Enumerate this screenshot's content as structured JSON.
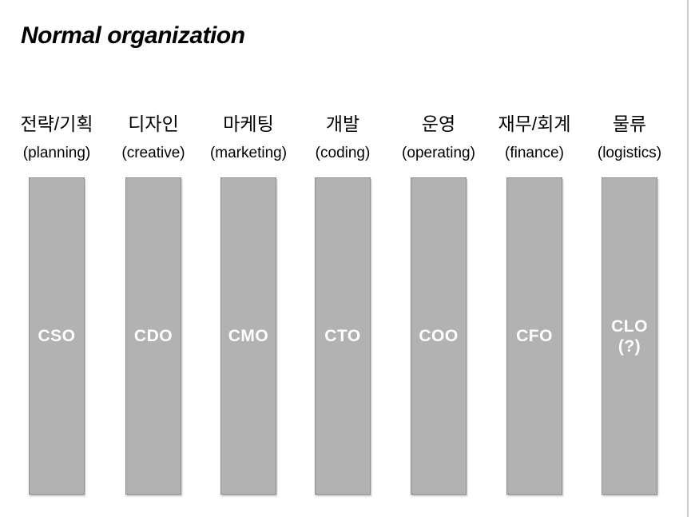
{
  "title": "Normal organization",
  "columns": [
    {
      "korean": "전략/기획",
      "english": "(planning)",
      "role": "CSO",
      "note": ""
    },
    {
      "korean": "디자인",
      "english": "(creative)",
      "role": "CDO",
      "note": ""
    },
    {
      "korean": "마케팅",
      "english": "(marketing)",
      "role": "CMO",
      "note": ""
    },
    {
      "korean": "개발",
      "english": "(coding)",
      "role": "CTO",
      "note": ""
    },
    {
      "korean": "운영",
      "english": "(operating)",
      "role": "COO",
      "note": ""
    },
    {
      "korean": "재무/회계",
      "english": "(finance)",
      "role": "CFO",
      "note": ""
    },
    {
      "korean": "물류",
      "english": "(logistics)",
      "role": "CLO",
      "note": "(?)"
    }
  ],
  "colors": {
    "bar-fill": "#b2b2b2",
    "bar-border": "#8f8f8f",
    "text-on-bar": "#ffffff",
    "title-text": "#000000",
    "edge-line": "#cacaca",
    "background": "#ffffff"
  }
}
